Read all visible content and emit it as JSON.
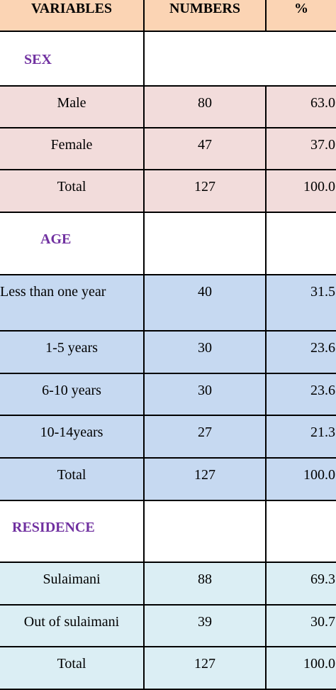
{
  "colors": {
    "header_bg": "#fbd4b4",
    "sex_rows_bg": "#f2dcdb",
    "age_rows_bg": "#c6d9f1",
    "residence_rows_bg": "#dbeef4",
    "section_label": "#7030a0"
  },
  "header": {
    "variables": "VARIABLES",
    "numbers": "NUMBERS",
    "percent": "%"
  },
  "sections": {
    "sex": {
      "label": "SEX",
      "rows": [
        {
          "variable": "Male",
          "number": "80",
          "percent": "63.0"
        },
        {
          "variable": "Female",
          "number": "47",
          "percent": "37.0"
        },
        {
          "variable": "Total",
          "number": "127",
          "percent": "100.0"
        }
      ]
    },
    "age": {
      "label": "AGE",
      "rows": [
        {
          "variable": "Less than one year",
          "number": "40",
          "percent": "31.5"
        },
        {
          "variable": "1-5 years",
          "number": "30",
          "percent": "23.6"
        },
        {
          "variable": "6-10 years",
          "number": "30",
          "percent": "23.6"
        },
        {
          "variable": "10-14years",
          "number": "27",
          "percent": "21.3"
        },
        {
          "variable": "Total",
          "number": "127",
          "percent": "100.0"
        }
      ]
    },
    "residence": {
      "label": "RESIDENCE",
      "rows": [
        {
          "variable": "Sulaimani",
          "number": "88",
          "percent": "69.3"
        },
        {
          "variable": "Out of sulaimani",
          "number": "39",
          "percent": "30.7"
        },
        {
          "variable": "Total",
          "number": "127",
          "percent": "100.0"
        }
      ]
    }
  }
}
